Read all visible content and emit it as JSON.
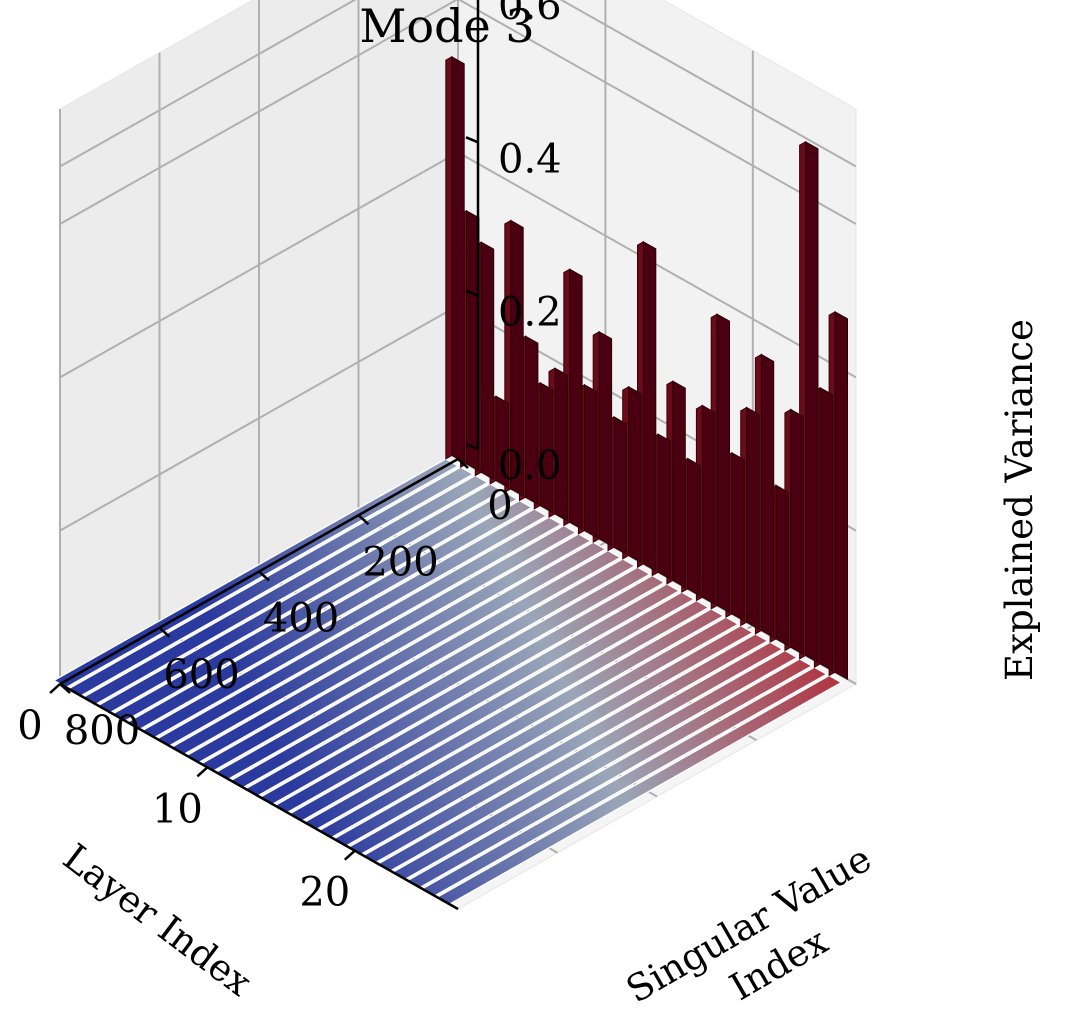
{
  "chart_data": {
    "type": "3d-surface",
    "title": "Mode 3",
    "xlabel": "Layer Index",
    "ylabel": "Singular Value Index",
    "zlabel": "Explained Variance",
    "x_ticks": [
      "20",
      "10",
      "0"
    ],
    "y_ticks": [
      "0",
      "200",
      "400",
      "600",
      "800"
    ],
    "z_ticks": [
      "0.0",
      "0.2",
      "0.4",
      "0.6"
    ],
    "xlim": [
      0,
      27
    ],
    "ylim": [
      0,
      800
    ],
    "zlim": [
      0,
      0.75
    ],
    "grid": true,
    "colormap": "coolwarm",
    "colormap_colors": [
      "#3b4cc0",
      "#dddddd",
      "#b40426"
    ],
    "n_layers": 27,
    "layers": [
      0,
      1,
      2,
      3,
      4,
      5,
      6,
      7,
      8,
      9,
      10,
      11,
      12,
      13,
      14,
      15,
      16,
      17,
      18,
      19,
      20,
      21,
      22,
      23,
      24,
      25,
      26
    ],
    "first_singular_value_explained_variance": [
      0.52,
      0.33,
      0.3,
      0.11,
      0.35,
      0.21,
      0.16,
      0.19,
      0.33,
      0.19,
      0.27,
      0.17,
      0.22,
      0.42,
      0.18,
      0.26,
      0.17,
      0.25,
      0.38,
      0.21,
      0.28,
      0.36,
      0.2,
      0.31,
      0.67,
      0.36,
      0.47
    ],
    "tail_explained_variance": 0.0
  }
}
